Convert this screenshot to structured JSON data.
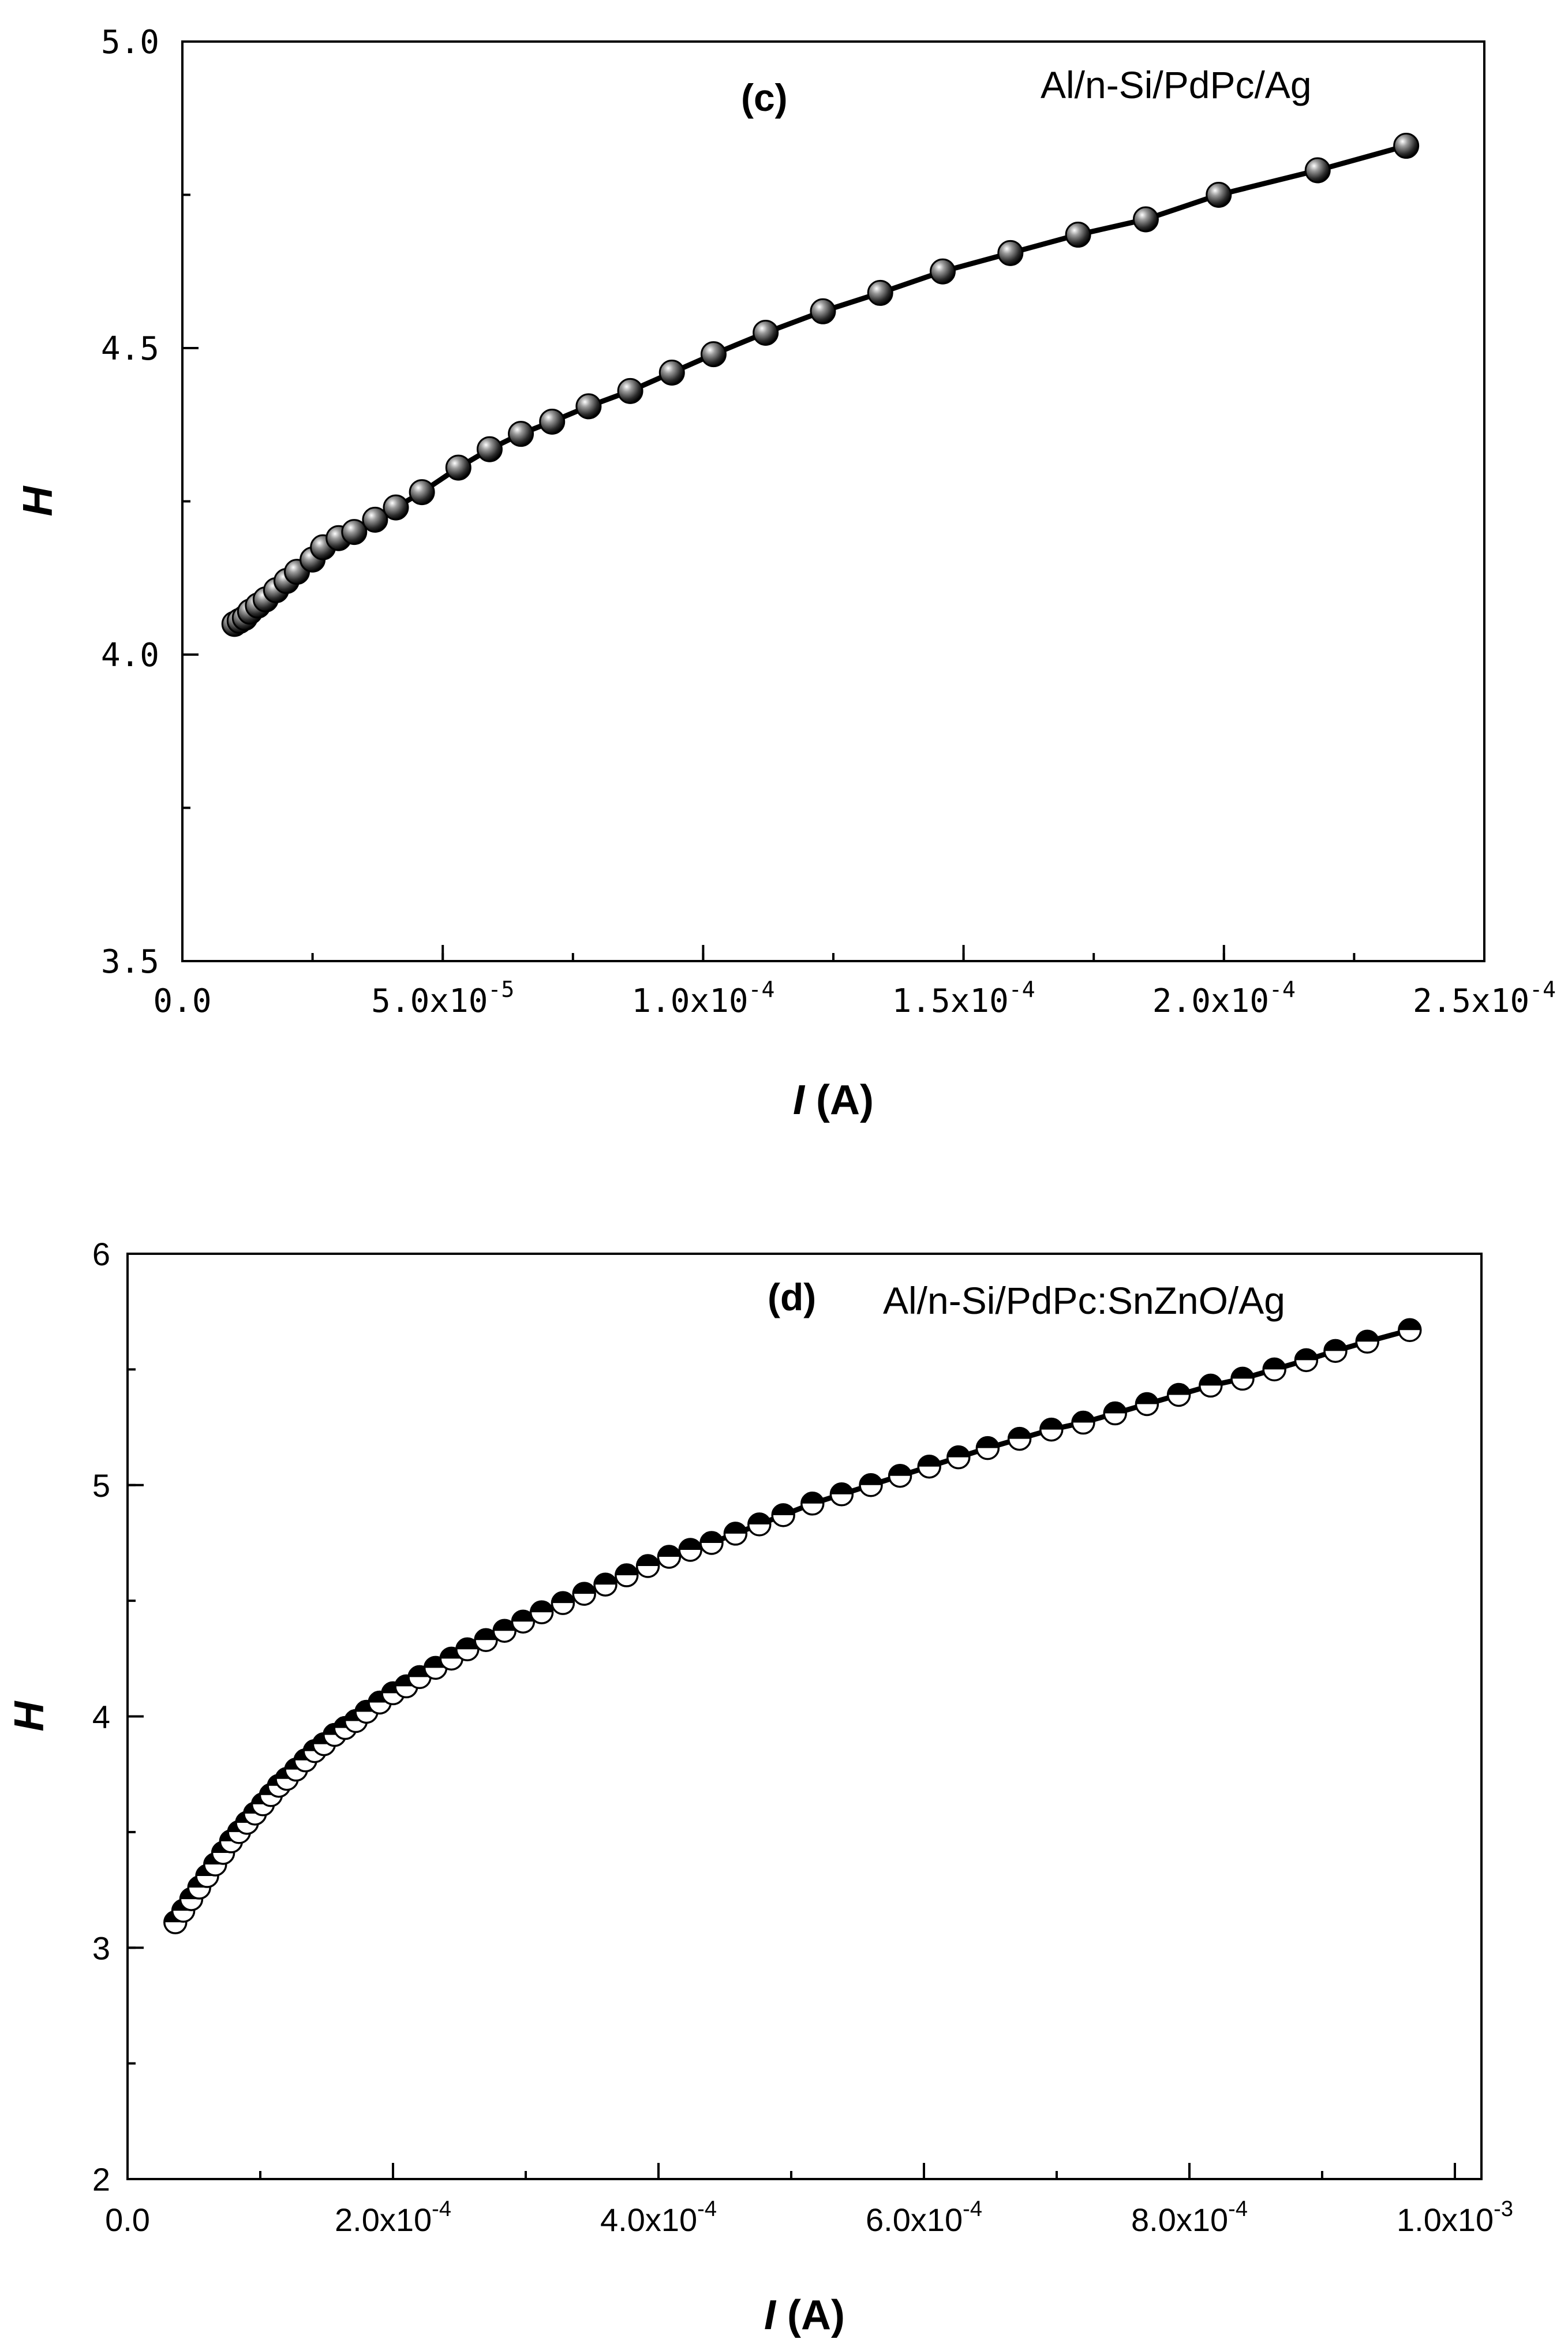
{
  "chart_data": [
    {
      "type": "scatter",
      "panel_label": "(c)",
      "annotation": "Al/n-Si/PdPc/Ag",
      "xlabel_italic": "I",
      "xlabel_rest": " (A)",
      "ylabel": "H",
      "xlim": [
        0,
        0.00025
      ],
      "ylim": [
        3.5,
        5.0
      ],
      "x_ticks": [
        {
          "v": 0,
          "base": "0.0",
          "exp": ""
        },
        {
          "v": 5e-05,
          "base": "5.0x10",
          "exp": "-5"
        },
        {
          "v": 0.0001,
          "base": "1.0x10",
          "exp": "-4"
        },
        {
          "v": 0.00015,
          "base": "1.5x10",
          "exp": "-4"
        },
        {
          "v": 0.0002,
          "base": "2.0x10",
          "exp": "-4"
        },
        {
          "v": 0.00025,
          "base": "2.5x10",
          "exp": "-4"
        }
      ],
      "y_ticks": [
        {
          "v": 3.5,
          "label": "3.5"
        },
        {
          "v": 4.0,
          "label": "4.0"
        },
        {
          "v": 4.5,
          "label": "4.5"
        },
        {
          "v": 5.0,
          "label": "5.0"
        }
      ],
      "marker": "ball",
      "x": [
        1e-05,
        1.1e-05,
        1.2e-05,
        1.3e-05,
        1.45e-05,
        1.6e-05,
        1.8e-05,
        2e-05,
        2.2e-05,
        2.5e-05,
        2.7e-05,
        3e-05,
        3.3e-05,
        3.7e-05,
        4.1e-05,
        4.6e-05,
        5.3e-05,
        5.9e-05,
        6.5e-05,
        7.1e-05,
        7.8e-05,
        8.6e-05,
        9.4e-05,
        0.000102,
        0.000112,
        0.000123,
        0.000134,
        0.000146,
        0.000159,
        0.000172,
        0.000185,
        0.000199,
        0.000218,
        0.000235
      ],
      "y": [
        4.05,
        4.055,
        4.06,
        4.07,
        4.08,
        4.09,
        4.105,
        4.12,
        4.135,
        4.155,
        4.175,
        4.19,
        4.2,
        4.22,
        4.24,
        4.265,
        4.305,
        4.335,
        4.36,
        4.38,
        4.405,
        4.43,
        4.46,
        4.49,
        4.525,
        4.56,
        4.59,
        4.625,
        4.655,
        4.685,
        4.71,
        4.75,
        4.79,
        4.83
      ]
    },
    {
      "type": "scatter",
      "panel_label": "(d)",
      "annotation": "Al/n-Si/PdPc:SnZnO/Ag",
      "xlabel_italic": "I",
      "xlabel_rest": " (A)",
      "ylabel": "H",
      "xlim": [
        0,
        0.00102
      ],
      "ylim": [
        2,
        6
      ],
      "x_ticks": [
        {
          "v": 0,
          "base": "0.0",
          "exp": ""
        },
        {
          "v": 0.0002,
          "base": "2.0x10",
          "exp": "-4"
        },
        {
          "v": 0.0004,
          "base": "4.0x10",
          "exp": "-4"
        },
        {
          "v": 0.0006,
          "base": "6.0x10",
          "exp": "-4"
        },
        {
          "v": 0.0008,
          "base": "8.0x10",
          "exp": "-4"
        },
        {
          "v": 0.001,
          "base": "1.0x10",
          "exp": "-3"
        }
      ],
      "y_ticks": [
        {
          "v": 2,
          "label": "2"
        },
        {
          "v": 3,
          "label": "3"
        },
        {
          "v": 4,
          "label": "4"
        },
        {
          "v": 5,
          "label": "5"
        },
        {
          "v": 6,
          "label": "6"
        }
      ],
      "marker": "half-filled-circle",
      "x": [
        3.6e-05,
        4.2e-05,
        4.8e-05,
        5.4e-05,
        6e-05,
        6.6e-05,
        7.2e-05,
        7.8e-05,
        8.4e-05,
        9e-05,
        9.6e-05,
        0.000102,
        0.000108,
        0.000114,
        0.00012,
        0.000127,
        0.000134,
        0.000141,
        0.000148,
        0.000156,
        0.000164,
        0.000172,
        0.00018,
        0.00019,
        0.0002,
        0.00021,
        0.00022,
        0.000232,
        0.000244,
        0.000256,
        0.00027,
        0.000284,
        0.000298,
        0.000312,
        0.000328,
        0.000344,
        0.00036,
        0.000376,
        0.000392,
        0.000408,
        0.000424,
        0.00044,
        0.000458,
        0.000476,
        0.000494,
        0.000516,
        0.000538,
        0.00056,
        0.000582,
        0.000604,
        0.000626,
        0.000648,
        0.000672,
        0.000696,
        0.00072,
        0.000744,
        0.000768,
        0.000792,
        0.000816,
        0.00084,
        0.000864,
        0.000888,
        0.00091,
        0.000934,
        0.000966
      ],
      "y": [
        3.11,
        3.16,
        3.21,
        3.26,
        3.31,
        3.36,
        3.41,
        3.46,
        3.5,
        3.54,
        3.58,
        3.62,
        3.66,
        3.7,
        3.73,
        3.77,
        3.81,
        3.85,
        3.88,
        3.92,
        3.95,
        3.98,
        4.02,
        4.06,
        4.1,
        4.13,
        4.17,
        4.21,
        4.25,
        4.29,
        4.33,
        4.37,
        4.41,
        4.45,
        4.49,
        4.53,
        4.57,
        4.61,
        4.65,
        4.69,
        4.72,
        4.75,
        4.79,
        4.83,
        4.87,
        4.92,
        4.96,
        5.0,
        5.04,
        5.08,
        5.12,
        5.16,
        5.2,
        5.24,
        5.27,
        5.31,
        5.35,
        5.39,
        5.43,
        5.46,
        5.5,
        5.54,
        5.58,
        5.62,
        5.67
      ]
    }
  ]
}
